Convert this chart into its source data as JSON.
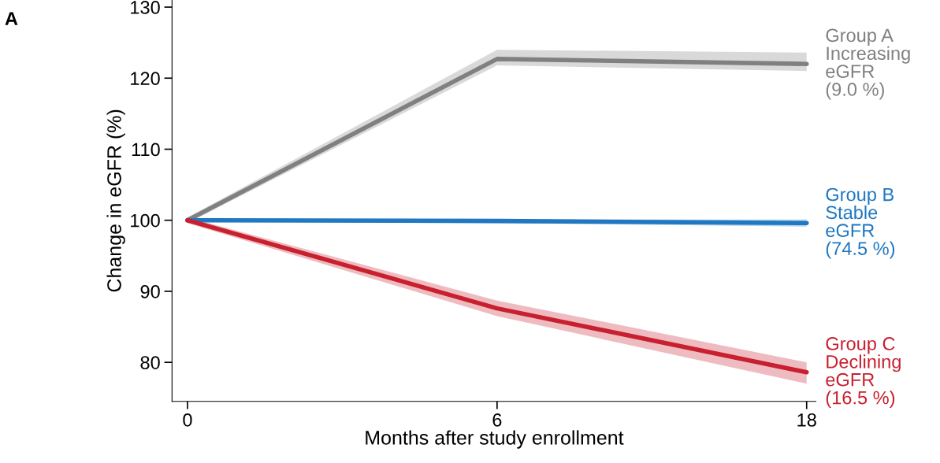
{
  "chart_data": {
    "type": "line",
    "xlabel": "Months after study enrollment",
    "ylabel": "Change in eGFR (%)",
    "categories": [
      "0",
      "6",
      "18"
    ],
    "ylim": [
      74.5,
      131
    ],
    "yticks": [
      80,
      90,
      100,
      110,
      120,
      130
    ],
    "grid": false,
    "legend": false,
    "marker": "none",
    "line_style": "solid",
    "annotations": [
      "A"
    ],
    "series": [
      {
        "name": "Group A\nIncreasing\neGFR\n(9.0 %)",
        "color": "#808080",
        "values": [
          100,
          122.7,
          122.0
        ],
        "lower": [
          99.6,
          121.8,
          121.0
        ],
        "upper": [
          100.4,
          124.0,
          123.6
        ]
      },
      {
        "name": "Group B\nStable\neGFR\n(74.5 %)",
        "color": "#1f78c1",
        "values": [
          100,
          99.9,
          99.6
        ],
        "lower": [
          99.8,
          99.6,
          99.1
        ],
        "upper": [
          100.2,
          100.1,
          100.1
        ]
      },
      {
        "name": "Group C\nDeclining\neGFR\n(16.5 %)",
        "color": "#c8202f",
        "values": [
          100,
          87.6,
          78.6
        ],
        "lower": [
          99.6,
          86.5,
          77.0
        ],
        "upper": [
          100.4,
          88.7,
          80.0
        ]
      }
    ]
  }
}
